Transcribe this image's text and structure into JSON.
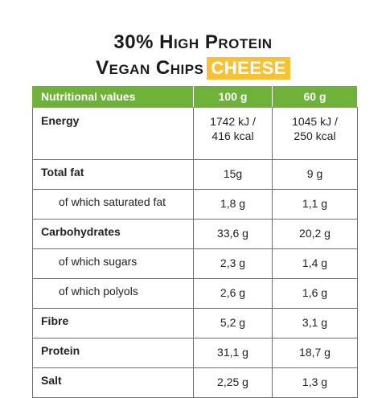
{
  "title": {
    "line1": "30% High Protein",
    "line2": "Vegan Chips",
    "flavor": "CHEESE"
  },
  "table": {
    "headers": [
      "Nutritional values",
      "100 g",
      "60 g"
    ],
    "rows": [
      {
        "label": "Energy",
        "v100_line1": "1742 kJ /",
        "v100_line2": "416 kcal",
        "v60_line1": "1045 kJ /",
        "v60_line2": "250 kcal"
      },
      {
        "label": "Total fat",
        "v100": "15g",
        "v60": "9 g"
      },
      {
        "label": "of which saturated fat",
        "v100": "1,8 g",
        "v60": "1,1 g"
      },
      {
        "label": "Carbohydrates",
        "v100": "33,6 g",
        "v60": "20,2 g"
      },
      {
        "label": "of which sugars",
        "v100": "2,3 g",
        "v60": "1,4 g"
      },
      {
        "label": "of which polyols",
        "v100": "2,6 g",
        "v60": "1,6 g"
      },
      {
        "label": "Fibre",
        "v100": "5,2 g",
        "v60": "3,1 g"
      },
      {
        "label": "Protein",
        "v100": "31,1 g",
        "v60": "18,7 g"
      },
      {
        "label": "Salt",
        "v100": "2,25 g",
        "v60": "1,3 g"
      }
    ]
  },
  "colors": {
    "header_green": "#6fb23a",
    "flavor_yellow": "#f6c234",
    "border_gray": "#6e6e6e"
  }
}
